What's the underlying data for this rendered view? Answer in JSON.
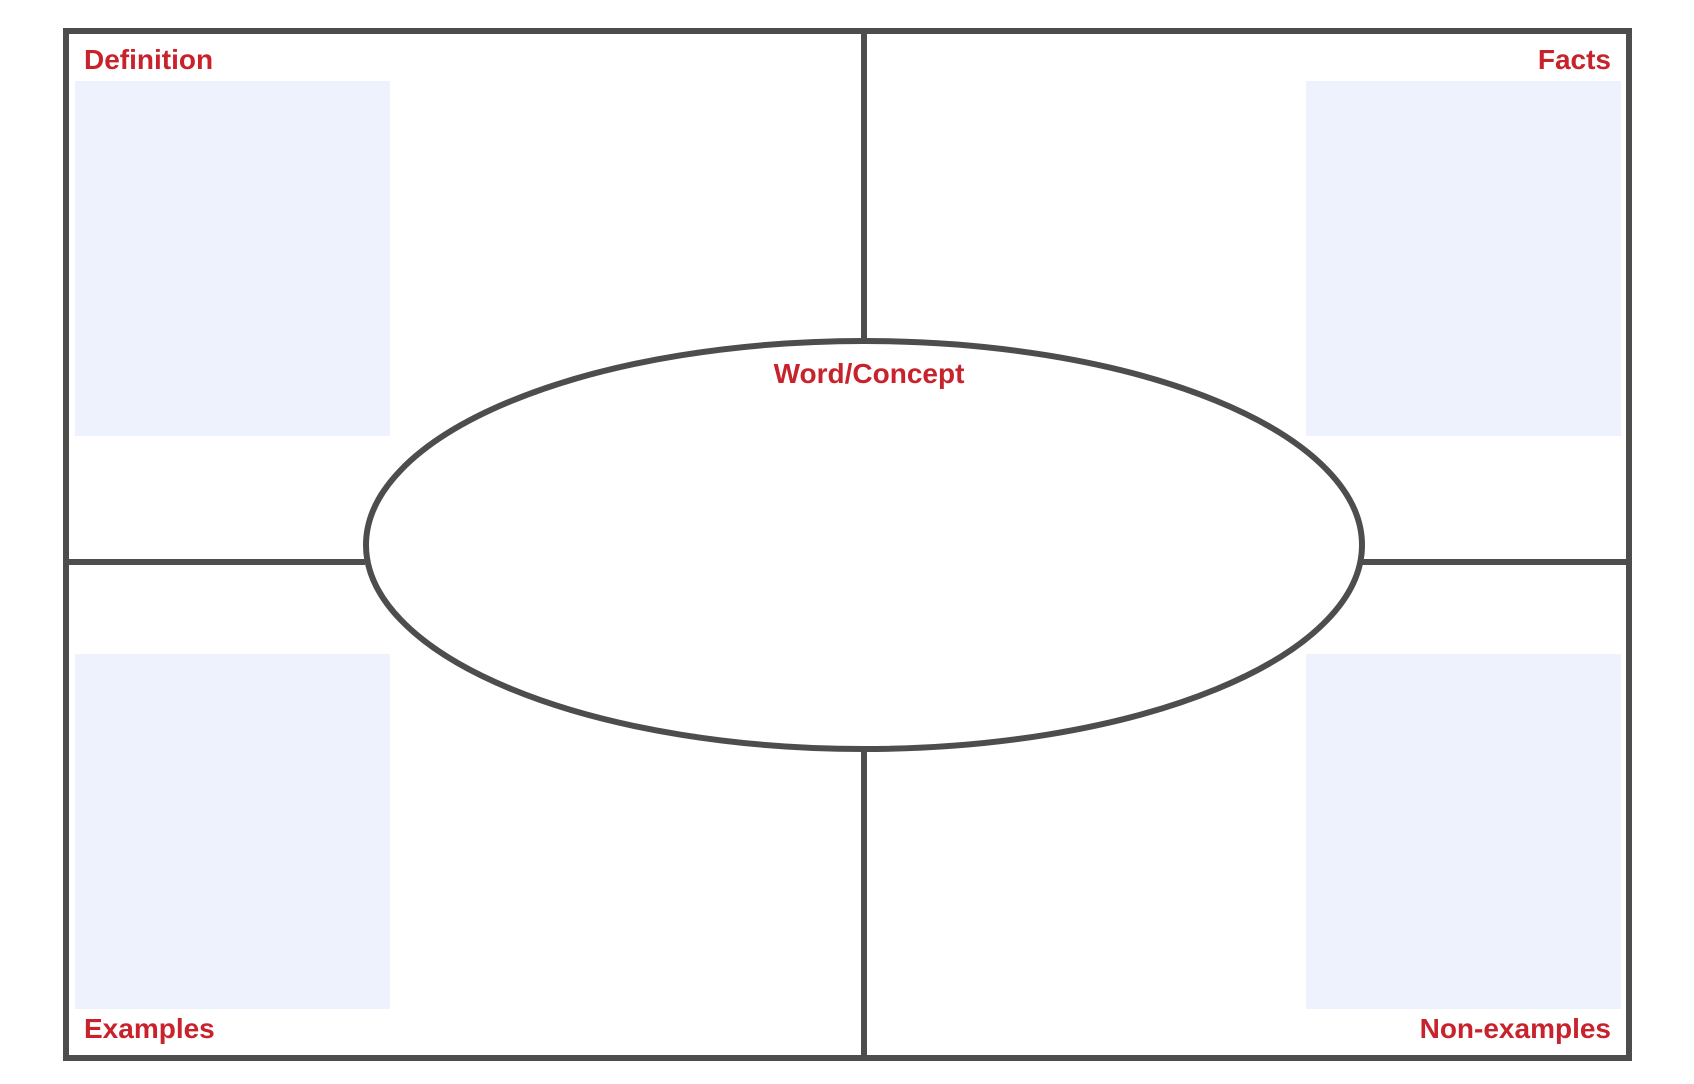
{
  "diagram": {
    "type": "frayer-model",
    "center_label": "Word/Concept",
    "quadrants": [
      {
        "id": "definition",
        "label": "Definition",
        "position": "top-left"
      },
      {
        "id": "facts",
        "label": "Facts",
        "position": "top-right"
      },
      {
        "id": "examples",
        "label": "Examples",
        "position": "bottom-left"
      },
      {
        "id": "non-examples",
        "label": "Non-examples",
        "position": "bottom-right"
      }
    ]
  },
  "colors": {
    "line": "#4d4d4d",
    "label": "#c8232c",
    "placeholder_fill": "#eef2fd",
    "background": "#ffffff"
  }
}
